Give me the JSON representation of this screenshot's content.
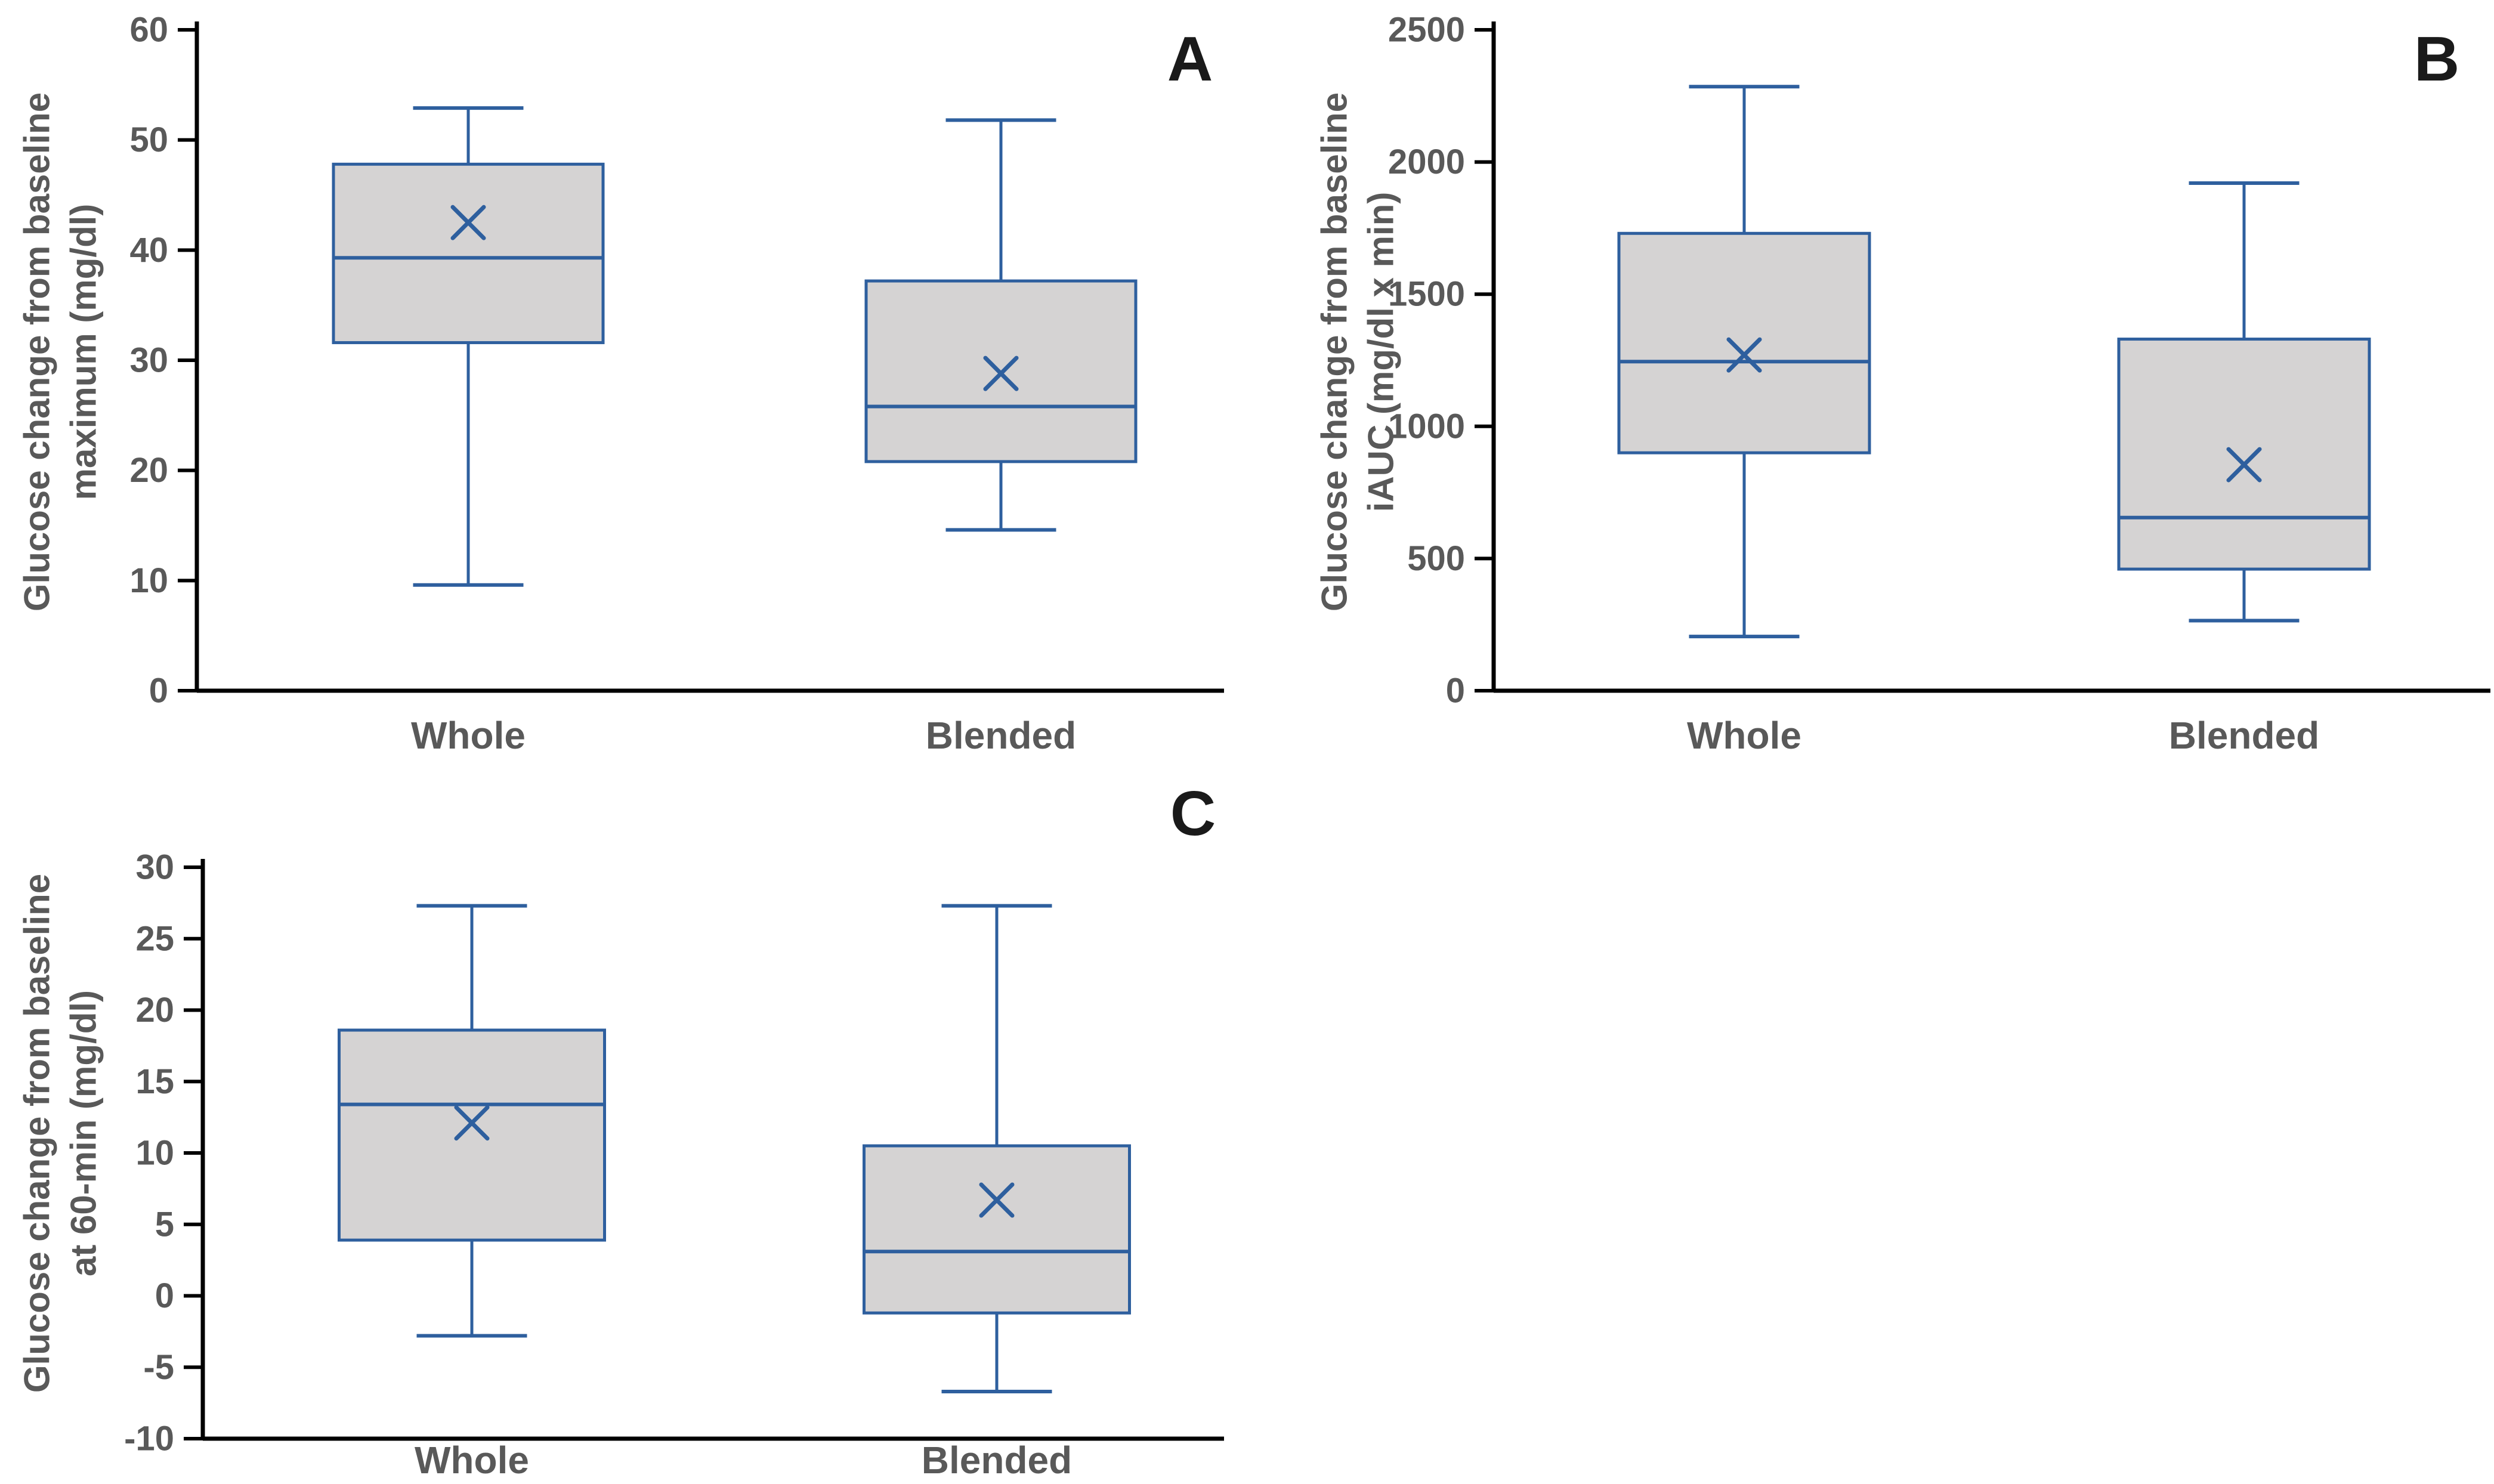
{
  "figure": {
    "background": "#ffffff",
    "colors": {
      "box_fill": "#d5d3d3",
      "box_stroke": "#2e5f9e",
      "whisker": "#2e5f9e",
      "mean_marker": "#2e5f9e",
      "axis_line": "#000000",
      "tick_label": "#595959",
      "category_label": "#595959",
      "axis_title": "#595959",
      "panel_letter": "#1a1a1a"
    }
  },
  "chart_data": [
    {
      "type": "boxplot",
      "panel_label": "A",
      "ylabel_lines": [
        "Glucose change from baseline",
        "maximum (mg/dl)"
      ],
      "ylim": [
        0,
        60
      ],
      "yticks": [
        0,
        10,
        20,
        30,
        40,
        50,
        60
      ],
      "grid": false,
      "legend": "none",
      "categories": [
        "Whole",
        "Blended"
      ],
      "series": [
        {
          "category": "Whole",
          "min": 9.6,
          "q1": 31.6,
          "median": 39.3,
          "q3": 47.8,
          "max": 52.9,
          "mean": 42.5
        },
        {
          "category": "Blended",
          "min": 14.6,
          "q1": 20.8,
          "median": 25.8,
          "q3": 37.2,
          "max": 51.8,
          "mean": 28.8
        }
      ]
    },
    {
      "type": "boxplot",
      "panel_label": "B",
      "ylabel_lines": [
        "Glucose change from baseline",
        "iAUC (mg/dl x min)"
      ],
      "ylim": [
        0,
        2500
      ],
      "yticks": [
        0,
        500,
        1000,
        1500,
        2000,
        2500
      ],
      "grid": false,
      "legend": "none",
      "categories": [
        "Whole",
        "Blended"
      ],
      "series": [
        {
          "category": "Whole",
          "min": 205,
          "q1": 900,
          "median": 1245,
          "q3": 1730,
          "max": 2285,
          "mean": 1270
        },
        {
          "category": "Blended",
          "min": 265,
          "q1": 460,
          "median": 655,
          "q3": 1330,
          "max": 1920,
          "mean": 855
        }
      ]
    },
    {
      "type": "boxplot",
      "panel_label": "C",
      "ylabel_lines": [
        "Glucose change from baseline",
        "at 60-min (mg/dl)"
      ],
      "ylim": [
        -10,
        30
      ],
      "yticks": [
        -10,
        -5,
        0,
        5,
        10,
        15,
        20,
        25,
        30
      ],
      "grid": false,
      "legend": "none",
      "categories": [
        "Whole",
        "Blended"
      ],
      "series": [
        {
          "category": "Whole",
          "min": -2.8,
          "q1": 3.9,
          "median": 13.4,
          "q3": 18.6,
          "max": 27.3,
          "mean": 12.1
        },
        {
          "category": "Blended",
          "min": -6.7,
          "q1": -1.2,
          "median": 3.1,
          "q3": 10.5,
          "max": 27.3,
          "mean": 6.7
        }
      ]
    }
  ]
}
